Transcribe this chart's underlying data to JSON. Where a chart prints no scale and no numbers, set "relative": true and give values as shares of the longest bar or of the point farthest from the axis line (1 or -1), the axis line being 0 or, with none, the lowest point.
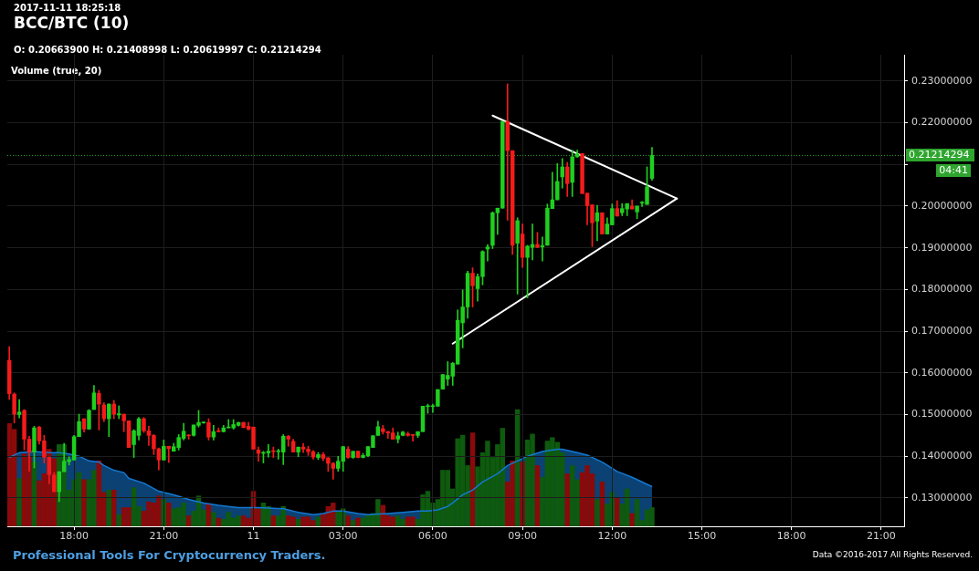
{
  "chart_data": [
    {
      "type": "candlestick",
      "title": "BCC/BTC (10)",
      "subtitle": "O: 0.20663900 H: 0.21408998 L: 0.20619997 C: 0.21214294",
      "annotations": [
        "2017-11-11 18:25:18",
        "Professional Tools For Cryptocurrency Traders.",
        "Data ©2016-2017 All Rights Reserved.",
        "04:41"
      ],
      "x": [
        "2017-11-10T15:50",
        "2017-11-10T16:00",
        "2017-11-10T16:10",
        "2017-11-10T16:20",
        "2017-11-10T16:30",
        "2017-11-10T16:40",
        "2017-11-10T16:50",
        "2017-11-10T17:00",
        "2017-11-10T17:10",
        "2017-11-10T17:20",
        "2017-11-10T17:30",
        "2017-11-10T17:40",
        "2017-11-10T17:50",
        "2017-11-10T18:00",
        "2017-11-10T18:10",
        "2017-11-10T18:20",
        "2017-11-10T18:30",
        "2017-11-10T18:40",
        "2017-11-10T18:50",
        "2017-11-10T19:00",
        "2017-11-10T19:10",
        "2017-11-10T19:20",
        "2017-11-10T19:30",
        "2017-11-10T19:40",
        "2017-11-10T19:50",
        "2017-11-10T20:00",
        "2017-11-10T20:10",
        "2017-11-10T20:20",
        "2017-11-10T20:30",
        "2017-11-10T20:40",
        "2017-11-10T20:50",
        "2017-11-10T21:00",
        "2017-11-10T21:10",
        "2017-11-10T21:20",
        "2017-11-10T21:30",
        "2017-11-10T21:40",
        "2017-11-10T21:50",
        "2017-11-10T22:00",
        "2017-11-10T22:10",
        "2017-11-10T22:20",
        "2017-11-10T22:30",
        "2017-11-10T22:40",
        "2017-11-10T22:50",
        "2017-11-10T23:00",
        "2017-11-10T23:10",
        "2017-11-10T23:20",
        "2017-11-10T23:30",
        "2017-11-10T23:40",
        "2017-11-10T23:50",
        "2017-11-11T00:00",
        "2017-11-11T00:10",
        "2017-11-11T00:20",
        "2017-11-11T00:30",
        "2017-11-11T00:40",
        "2017-11-11T00:50",
        "2017-11-11T01:00",
        "2017-11-11T01:10",
        "2017-11-11T01:20",
        "2017-11-11T01:30",
        "2017-11-11T01:40",
        "2017-11-11T01:50",
        "2017-11-11T02:00",
        "2017-11-11T02:10",
        "2017-11-11T02:20",
        "2017-11-11T02:30",
        "2017-11-11T02:40",
        "2017-11-11T02:50",
        "2017-11-11T03:00",
        "2017-11-11T03:10",
        "2017-11-11T03:20",
        "2017-11-11T03:30",
        "2017-11-11T03:40",
        "2017-11-11T03:50",
        "2017-11-11T04:00",
        "2017-11-11T04:10",
        "2017-11-11T04:20",
        "2017-11-11T04:30",
        "2017-11-11T04:40",
        "2017-11-11T04:50",
        "2017-11-11T05:00",
        "2017-11-11T05:10",
        "2017-11-11T05:20",
        "2017-11-11T05:30",
        "2017-11-11T05:40",
        "2017-11-11T05:50",
        "2017-11-11T06:00",
        "2017-11-11T06:10",
        "2017-11-11T06:20",
        "2017-11-11T06:30",
        "2017-11-11T06:40",
        "2017-11-11T06:50",
        "2017-11-11T07:00",
        "2017-11-11T07:10",
        "2017-11-11T07:20",
        "2017-11-11T07:30",
        "2017-11-11T07:40",
        "2017-11-11T07:50",
        "2017-11-11T08:00",
        "2017-11-11T08:10",
        "2017-11-11T08:20",
        "2017-11-11T08:30",
        "2017-11-11T08:40",
        "2017-11-11T08:50",
        "2017-11-11T09:00",
        "2017-11-11T09:10",
        "2017-11-11T09:20",
        "2017-11-11T09:30",
        "2017-11-11T09:40",
        "2017-11-11T09:50",
        "2017-11-11T10:00",
        "2017-11-11T10:10",
        "2017-11-11T10:20",
        "2017-11-11T10:30",
        "2017-11-11T10:40",
        "2017-11-11T10:50",
        "2017-11-11T11:00",
        "2017-11-11T11:10",
        "2017-11-11T11:20",
        "2017-11-11T11:30",
        "2017-11-11T11:40",
        "2017-11-11T11:50",
        "2017-11-11T12:00",
        "2017-11-11T12:10",
        "2017-11-11T12:20",
        "2017-11-11T12:30",
        "2017-11-11T12:40",
        "2017-11-11T12:50",
        "2017-11-11T13:00",
        "2017-11-11T13:10",
        "2017-11-11T13:20"
      ],
      "ohlc": [
        [
          0.163,
          0.1663,
          0.1536,
          0.155
        ],
        [
          0.1549,
          0.1552,
          0.148,
          0.1501
        ],
        [
          0.15,
          0.1536,
          0.1492,
          0.1506
        ],
        [
          0.151,
          0.1512,
          0.1415,
          0.1441
        ],
        [
          0.1441,
          0.1448,
          0.1364,
          0.141
        ],
        [
          0.141,
          0.1472,
          0.1372,
          0.1468
        ],
        [
          0.147,
          0.1472,
          0.1429,
          0.1437
        ],
        [
          0.1437,
          0.145,
          0.1384,
          0.1398
        ],
        [
          0.1398,
          0.1398,
          0.1334,
          0.1356
        ],
        [
          0.1355,
          0.1361,
          0.1315,
          0.1315
        ],
        [
          0.1315,
          0.1363,
          0.1291,
          0.1363
        ],
        [
          0.1363,
          0.1431,
          0.1363,
          0.1388
        ],
        [
          0.1387,
          0.1399,
          0.1379,
          0.1392
        ],
        [
          0.1391,
          0.145,
          0.1391,
          0.1447
        ],
        [
          0.1447,
          0.1501,
          0.1447,
          0.1483
        ],
        [
          0.149,
          0.149,
          0.1458,
          0.1465
        ],
        [
          0.1465,
          0.1512,
          0.1465,
          0.151
        ],
        [
          0.1512,
          0.157,
          0.1512,
          0.1552
        ],
        [
          0.1551,
          0.1558,
          0.1463,
          0.1525
        ],
        [
          0.1523,
          0.1528,
          0.1483,
          0.149
        ],
        [
          0.149,
          0.1526,
          0.1447,
          0.1525
        ],
        [
          0.1525,
          0.1534,
          0.149,
          0.1501
        ],
        [
          0.1499,
          0.1521,
          0.149,
          0.1502
        ],
        [
          0.1501,
          0.1501,
          0.1459,
          0.1485
        ],
        [
          0.1485,
          0.1485,
          0.1421,
          0.1421
        ],
        [
          0.1428,
          0.1464,
          0.1397,
          0.1461
        ],
        [
          0.145,
          0.1493,
          0.1439,
          0.149
        ],
        [
          0.149,
          0.1493,
          0.1457,
          0.1461
        ],
        [
          0.1461,
          0.1472,
          0.1426,
          0.145
        ],
        [
          0.145,
          0.1452,
          0.1404,
          0.1418
        ],
        [
          0.1418,
          0.142,
          0.1367,
          0.1391
        ],
        [
          0.1391,
          0.1439,
          0.1391,
          0.1424
        ],
        [
          0.1424,
          0.1424,
          0.1385,
          0.1418
        ],
        [
          0.1412,
          0.1431,
          0.1412,
          0.1423
        ],
        [
          0.1421,
          0.1452,
          0.1415,
          0.1445
        ],
        [
          0.1443,
          0.1479,
          0.1439,
          0.146
        ],
        [
          0.1451,
          0.1452,
          0.1441,
          0.1449
        ],
        [
          0.145,
          0.1475,
          0.1448,
          0.1475
        ],
        [
          0.1474,
          0.151,
          0.147,
          0.1481
        ],
        [
          0.148,
          0.1482,
          0.1479,
          0.1481
        ],
        [
          0.1481,
          0.149,
          0.1439,
          0.1446
        ],
        [
          0.1446,
          0.1474,
          0.1439,
          0.1459
        ],
        [
          0.146,
          0.1468,
          0.1458,
          0.1459
        ],
        [
          0.1459,
          0.1474,
          0.1458,
          0.1468
        ],
        [
          0.1468,
          0.1488,
          0.1468,
          0.147
        ],
        [
          0.1468,
          0.1488,
          0.1465,
          0.1476
        ],
        [
          0.1474,
          0.1482,
          0.1472,
          0.1481
        ],
        [
          0.1481,
          0.1482,
          0.1468,
          0.1469
        ],
        [
          0.1472,
          0.1481,
          0.1463,
          0.1465
        ],
        [
          0.147,
          0.147,
          0.1417,
          0.1417
        ],
        [
          0.1415,
          0.1422,
          0.1388,
          0.1407
        ],
        [
          0.1407,
          0.1412,
          0.1384,
          0.1409
        ],
        [
          0.1408,
          0.1428,
          0.1398,
          0.1412
        ],
        [
          0.1412,
          0.1422,
          0.1397,
          0.1411
        ],
        [
          0.1411,
          0.1417,
          0.1393,
          0.1412
        ],
        [
          0.141,
          0.1452,
          0.138,
          0.1448
        ],
        [
          0.1448,
          0.145,
          0.1424,
          0.1441
        ],
        [
          0.1436,
          0.1441,
          0.141,
          0.141
        ],
        [
          0.141,
          0.1422,
          0.1399,
          0.1422
        ],
        [
          0.1422,
          0.1431,
          0.1409,
          0.1417
        ],
        [
          0.1417,
          0.1424,
          0.1402,
          0.1411
        ],
        [
          0.1411,
          0.1414,
          0.1393,
          0.1398
        ],
        [
          0.1397,
          0.1409,
          0.1392,
          0.1404
        ],
        [
          0.1404,
          0.1409,
          0.1389,
          0.1395
        ],
        [
          0.1396,
          0.1397,
          0.1364,
          0.1383
        ],
        [
          0.1383,
          0.1385,
          0.1345,
          0.1371
        ],
        [
          0.1371,
          0.14,
          0.1364,
          0.1388
        ],
        [
          0.1388,
          0.1424,
          0.1364,
          0.1423
        ],
        [
          0.1417,
          0.1423,
          0.1395,
          0.1397
        ],
        [
          0.1397,
          0.1412,
          0.1395,
          0.1412
        ],
        [
          0.1412,
          0.1413,
          0.1396,
          0.1397
        ],
        [
          0.1397,
          0.1407,
          0.1396,
          0.1402
        ],
        [
          0.1401,
          0.1424,
          0.1399,
          0.1423
        ],
        [
          0.1421,
          0.145,
          0.1421,
          0.1449
        ],
        [
          0.145,
          0.1484,
          0.145,
          0.1471
        ],
        [
          0.1466,
          0.1474,
          0.1453,
          0.1459
        ],
        [
          0.1459,
          0.146,
          0.1443,
          0.1456
        ],
        [
          0.1456,
          0.1468,
          0.1441,
          0.1441
        ],
        [
          0.1441,
          0.1458,
          0.1432,
          0.1449
        ],
        [
          0.145,
          0.146,
          0.1449,
          0.1458
        ],
        [
          0.1454,
          0.1458,
          0.1448,
          0.145
        ],
        [
          0.1452,
          0.1452,
          0.1436,
          0.145
        ],
        [
          0.145,
          0.1459,
          0.1445,
          0.1459
        ],
        [
          0.1459,
          0.152,
          0.1459,
          0.152
        ],
        [
          0.1519,
          0.1525,
          0.1503,
          0.152
        ],
        [
          0.1519,
          0.1525,
          0.1505,
          0.1521
        ],
        [
          0.152,
          0.156,
          0.152,
          0.156
        ],
        [
          0.1561,
          0.1596,
          0.1561,
          0.1596
        ],
        [
          0.1585,
          0.1627,
          0.157,
          0.1594
        ],
        [
          0.1592,
          0.1625,
          0.157,
          0.1623
        ],
        [
          0.1621,
          0.1751,
          0.1621,
          0.1726
        ],
        [
          0.172,
          0.1799,
          0.166,
          0.1758
        ],
        [
          0.1758,
          0.1844,
          0.1731,
          0.1839
        ],
        [
          0.1839,
          0.1852,
          0.1758,
          0.1809
        ],
        [
          0.1802,
          0.1837,
          0.1772,
          0.1831
        ],
        [
          0.1831,
          0.1893,
          0.1811,
          0.1891
        ],
        [
          0.1897,
          0.1908,
          0.1868,
          0.1902
        ],
        [
          0.1906,
          0.1986,
          0.1898,
          0.1984
        ],
        [
          0.1984,
          0.1995,
          0.1932,
          0.1995
        ],
        [
          0.1995,
          0.2203,
          0.1995,
          0.2203
        ],
        [
          0.2203,
          0.2293,
          0.1966,
          0.2133
        ],
        [
          0.2133,
          0.2133,
          0.1884,
          0.1906
        ],
        [
          0.1911,
          0.1972,
          0.1789,
          0.1965
        ],
        [
          0.1933,
          0.1957,
          0.1853,
          0.1877
        ],
        [
          0.1877,
          0.1906,
          0.178,
          0.1904
        ],
        [
          0.1901,
          0.1957,
          0.1871,
          0.1908
        ],
        [
          0.1908,
          0.1937,
          0.19,
          0.1901
        ],
        [
          0.1902,
          0.1926,
          0.1868,
          0.1905
        ],
        [
          0.1906,
          0.2005,
          0.1906,
          0.1995
        ],
        [
          0.1994,
          0.2081,
          0.1994,
          0.2015
        ],
        [
          0.2015,
          0.2102,
          0.2015,
          0.2059
        ],
        [
          0.207,
          0.2114,
          0.2043,
          0.2094
        ],
        [
          0.2094,
          0.2105,
          0.2023,
          0.2054
        ],
        [
          0.2057,
          0.2134,
          0.2023,
          0.2118
        ],
        [
          0.2118,
          0.2134,
          0.2117,
          0.2125
        ],
        [
          0.2126,
          0.2126,
          0.203,
          0.203
        ],
        [
          0.2031,
          0.2031,
          0.1955,
          0.2001
        ],
        [
          0.2003,
          0.2003,
          0.1903,
          0.196
        ],
        [
          0.1964,
          0.2002,
          0.1917,
          0.1984
        ],
        [
          0.1984,
          0.1984,
          0.1933,
          0.1933
        ],
        [
          0.1933,
          0.1972,
          0.1933,
          0.1957
        ],
        [
          0.1955,
          0.2005,
          0.1955,
          0.1994
        ],
        [
          0.1994,
          0.2013,
          0.1976,
          0.1976
        ],
        [
          0.1984,
          0.2006,
          0.1977,
          0.1994
        ],
        [
          0.1993,
          0.2006,
          0.1977,
          0.2006
        ],
        [
          0.2,
          0.2015,
          0.1993,
          0.1993
        ],
        [
          0.1986,
          0.2,
          0.197,
          0.2
        ],
        [
          0.2007,
          0.2011,
          0.1999,
          0.2008
        ],
        [
          0.2004,
          0.2094,
          0.2004,
          0.2046
        ],
        [
          0.206639,
          0.21408998,
          0.20619997,
          0.21214294
        ]
      ],
      "colors": [
        "#f51b1b",
        "#f51b1b",
        "#1fcf1f",
        "#f51b1b",
        "#f51b1b",
        "#1fcf1f",
        "#f51b1b",
        "#f51b1b",
        "#f51b1b",
        "#f51b1b",
        "#1fcf1f",
        "#1fcf1f",
        "#1fcf1f",
        "#1fcf1f",
        "#1fcf1f",
        "#f51b1b",
        "#1fcf1f",
        "#1fcf1f",
        "#f51b1b",
        "#f51b1b",
        "#1fcf1f",
        "#f51b1b",
        "#1fcf1f",
        "#f51b1b",
        "#f51b1b",
        "#1fcf1f",
        "#1fcf1f",
        "#f51b1b",
        "#f51b1b",
        "#f51b1b",
        "#f51b1b",
        "#1fcf1f",
        "#f51b1b",
        "#1fcf1f",
        "#1fcf1f",
        "#1fcf1f",
        "#f51b1b",
        "#1fcf1f",
        "#1fcf1f",
        "#1fcf1f",
        "#f51b1b",
        "#1fcf1f",
        "#f51b1b",
        "#1fcf1f",
        "#1fcf1f",
        "#1fcf1f",
        "#1fcf1f",
        "#f51b1b",
        "#f51b1b",
        "#f51b1b",
        "#f51b1b",
        "#1fcf1f",
        "#1fcf1f",
        "#f51b1b",
        "#1fcf1f",
        "#1fcf1f",
        "#f51b1b",
        "#f51b1b",
        "#1fcf1f",
        "#f51b1b",
        "#f51b1b",
        "#f51b1b",
        "#1fcf1f",
        "#f51b1b",
        "#f51b1b",
        "#f51b1b",
        "#1fcf1f",
        "#1fcf1f",
        "#f51b1b",
        "#1fcf1f",
        "#f51b1b",
        "#1fcf1f",
        "#1fcf1f",
        "#1fcf1f",
        "#1fcf1f",
        "#f51b1b",
        "#f51b1b",
        "#f51b1b",
        "#1fcf1f",
        "#1fcf1f",
        "#f51b1b",
        "#f51b1b",
        "#1fcf1f",
        "#1fcf1f",
        "#1fcf1f",
        "#1fcf1f",
        "#1fcf1f",
        "#1fcf1f",
        "#1fcf1f",
        "#1fcf1f",
        "#1fcf1f",
        "#1fcf1f",
        "#1fcf1f",
        "#f51b1b",
        "#1fcf1f",
        "#1fcf1f",
        "#1fcf1f",
        "#1fcf1f",
        "#1fcf1f",
        "#1fcf1f",
        "#f51b1b",
        "#f51b1b",
        "#1fcf1f",
        "#f51b1b",
        "#1fcf1f",
        "#1fcf1f",
        "#f51b1b",
        "#1fcf1f",
        "#1fcf1f",
        "#1fcf1f",
        "#1fcf1f",
        "#1fcf1f",
        "#f51b1b",
        "#1fcf1f",
        "#1fcf1f",
        "#f51b1b",
        "#f51b1b",
        "#f51b1b",
        "#1fcf1f",
        "#f51b1b",
        "#1fcf1f",
        "#1fcf1f",
        "#f51b1b",
        "#1fcf1f",
        "#1fcf1f",
        "#f51b1b",
        "#1fcf1f",
        "#1fcf1f",
        "#1fcf1f",
        "#1fcf1f"
      ],
      "series": [
        {
          "type": "line",
          "x": [
            "2017-11-11T08:00",
            "2017-11-11T14:10"
          ],
          "values": [
            0.2217,
            0.2018
          ],
          "color": "#ffffff"
        },
        {
          "type": "line",
          "x": [
            "2017-11-11T06:40",
            "2017-11-11T14:10"
          ],
          "values": [
            0.167,
            0.2018
          ],
          "color": "#ffffff"
        }
      ],
      "xlim": [
        "2017-11-10T15:46",
        "2017-11-11T21:46"
      ],
      "xticks": [
        {
          "value": "2017-11-10T18:00",
          "label": "18:00"
        },
        {
          "value": "2017-11-10T21:00",
          "label": "21:00"
        },
        {
          "value": "2017-11-11T00:00",
          "label": "11"
        },
        {
          "value": "2017-11-11T03:00",
          "label": "03:00"
        },
        {
          "value": "2017-11-11T06:00",
          "label": "06:00"
        },
        {
          "value": "2017-11-11T09:00",
          "label": "09:00"
        },
        {
          "value": "2017-11-11T12:00",
          "label": "12:00"
        },
        {
          "value": "2017-11-11T15:00",
          "label": "15:00"
        },
        {
          "value": "2017-11-11T18:00",
          "label": "18:00"
        },
        {
          "value": "2017-11-11T21:00",
          "label": "21:00"
        }
      ],
      "ylim": [
        0.1232,
        0.2363
      ],
      "yticks": [
        {
          "value": 0.13,
          "label": "0.13000000"
        },
        {
          "value": 0.14,
          "label": "0.14000000"
        },
        {
          "value": 0.15,
          "label": "0.15000000"
        },
        {
          "value": 0.16,
          "label": "0.16000000"
        },
        {
          "value": 0.17,
          "label": "0.17000000"
        },
        {
          "value": 0.18,
          "label": "0.18000000"
        },
        {
          "value": 0.19,
          "label": "0.19000000"
        },
        {
          "value": 0.2,
          "label": "0.20000000"
        },
        {
          "value": 0.21,
          "label": null
        },
        {
          "value": 0.22,
          "label": "0.22000000"
        },
        {
          "value": 0.23,
          "label": "0.23000000"
        }
      ],
      "grid": true,
      "ref_lines": [
        {
          "axis": "y",
          "value": 0.21214294,
          "label": "0.21214294",
          "color": "#2fa52f",
          "line_style": "dotted"
        }
      ]
    },
    {
      "type": "bar",
      "title": "Volume (true, 20)",
      "relative": true,
      "x": [
        "2017-11-10T15:50",
        "2017-11-10T16:00",
        "2017-11-10T16:10",
        "2017-11-10T16:20",
        "2017-11-10T16:30",
        "2017-11-10T16:40",
        "2017-11-10T16:50",
        "2017-11-10T17:00",
        "2017-11-10T17:10",
        "2017-11-10T17:20",
        "2017-11-10T17:30",
        "2017-11-10T17:40",
        "2017-11-10T17:50",
        "2017-11-10T18:00",
        "2017-11-10T18:10",
        "2017-11-10T18:20",
        "2017-11-10T18:30",
        "2017-11-10T18:40",
        "2017-11-10T18:50",
        "2017-11-10T19:00",
        "2017-11-10T19:10",
        "2017-11-10T19:20",
        "2017-11-10T19:30",
        "2017-11-10T19:40",
        "2017-11-10T19:50",
        "2017-11-10T20:00",
        "2017-11-10T20:10",
        "2017-11-10T20:20",
        "2017-11-10T20:30",
        "2017-11-10T20:40",
        "2017-11-10T20:50",
        "2017-11-10T21:00",
        "2017-11-10T21:10",
        "2017-11-10T21:20",
        "2017-11-10T21:30",
        "2017-11-10T21:40",
        "2017-11-10T21:50",
        "2017-11-10T22:00",
        "2017-11-10T22:10",
        "2017-11-10T22:20",
        "2017-11-10T22:30",
        "2017-11-10T22:40",
        "2017-11-10T22:50",
        "2017-11-10T23:00",
        "2017-11-10T23:10",
        "2017-11-10T23:20",
        "2017-11-10T23:30",
        "2017-11-10T23:40",
        "2017-11-10T23:50",
        "2017-11-11T00:00",
        "2017-11-11T00:10",
        "2017-11-11T00:20",
        "2017-11-11T00:30",
        "2017-11-11T00:40",
        "2017-11-11T00:50",
        "2017-11-11T01:00",
        "2017-11-11T01:10",
        "2017-11-11T01:20",
        "2017-11-11T01:30",
        "2017-11-11T01:40",
        "2017-11-11T01:50",
        "2017-11-11T02:00",
        "2017-11-11T02:10",
        "2017-11-11T02:20",
        "2017-11-11T02:30",
        "2017-11-11T02:40",
        "2017-11-11T02:50",
        "2017-11-11T03:00",
        "2017-11-11T03:10",
        "2017-11-11T03:20",
        "2017-11-11T03:30",
        "2017-11-11T03:40",
        "2017-11-11T03:50",
        "2017-11-11T04:00",
        "2017-11-11T04:10",
        "2017-11-11T04:20",
        "2017-11-11T04:30",
        "2017-11-11T04:40",
        "2017-11-11T04:50",
        "2017-11-11T05:00",
        "2017-11-11T05:10",
        "2017-11-11T05:20",
        "2017-11-11T05:30",
        "2017-11-11T05:40",
        "2017-11-11T05:50",
        "2017-11-11T06:00",
        "2017-11-11T06:10",
        "2017-11-11T06:20",
        "2017-11-11T06:30",
        "2017-11-11T06:40",
        "2017-11-11T06:50",
        "2017-11-11T07:00",
        "2017-11-11T07:10",
        "2017-11-11T07:20",
        "2017-11-11T07:30",
        "2017-11-11T07:40",
        "2017-11-11T07:50",
        "2017-11-11T08:00",
        "2017-11-11T08:10",
        "2017-11-11T08:20",
        "2017-11-11T08:30",
        "2017-11-11T08:40",
        "2017-11-11T08:50",
        "2017-11-11T09:00",
        "2017-11-11T09:10",
        "2017-11-11T09:20",
        "2017-11-11T09:30",
        "2017-11-11T09:40",
        "2017-11-11T09:50",
        "2017-11-11T10:00",
        "2017-11-11T10:10",
        "2017-11-11T10:20",
        "2017-11-11T10:30",
        "2017-11-11T10:40",
        "2017-11-11T10:50",
        "2017-11-11T11:00",
        "2017-11-11T11:10",
        "2017-11-11T11:20",
        "2017-11-11T11:30",
        "2017-11-11T11:40",
        "2017-11-11T11:50",
        "2017-11-11T12:00",
        "2017-11-11T12:10",
        "2017-11-11T12:20",
        "2017-11-11T12:30",
        "2017-11-11T12:40",
        "2017-11-11T12:50",
        "2017-11-11T13:00",
        "2017-11-11T13:10",
        "2017-11-11T13:20"
      ],
      "xlim": [
        "2017-11-10T15:46",
        "2017-11-11T21:46"
      ],
      "series": [
        {
          "values": [
            0.88,
            0.83,
            0.41,
            0.62,
            0.59,
            0.55,
            0.39,
            0.45,
            0.66,
            0.58,
            0.7,
            0.7,
            0.31,
            0.4,
            0.46,
            0.4,
            0.4,
            0.48,
            0.56,
            0.29,
            0.31,
            0.31,
            0.1,
            0.16,
            0.16,
            0.33,
            0.17,
            0.13,
            0.21,
            0.2,
            0.26,
            0.23,
            0.2,
            0.15,
            0.16,
            0.2,
            0.09,
            0.13,
            0.26,
            0.14,
            0.19,
            0.12,
            0.07,
            0.06,
            0.12,
            0.07,
            0.09,
            0.09,
            0.07,
            0.3,
            0.15,
            0.2,
            0.17,
            0.09,
            0.09,
            0.17,
            0.09,
            0.08,
            0.06,
            0.08,
            0.08,
            0.05,
            0.08,
            0.1,
            0.17,
            0.2,
            0.13,
            0.15,
            0.09,
            0.05,
            0.07,
            0.07,
            0.1,
            0.11,
            0.23,
            0.18,
            0.09,
            0.08,
            0.09,
            0.06,
            0.08,
            0.08,
            0.06,
            0.27,
            0.3,
            0.2,
            0.23,
            0.48,
            0.48,
            0.32,
            0.75,
            0.78,
            0.52,
            0.8,
            0.51,
            0.63,
            0.73,
            0.59,
            0.7,
            0.84,
            0.38,
            0.56,
            1,
            0.55,
            0.74,
            0.79,
            0.52,
            0.42,
            0.73,
            0.76,
            0.72,
            0.63,
            0.45,
            0.52,
            0.4,
            0.46,
            0.52,
            0.45,
            0.23,
            0.38,
            0.19,
            0.29,
            0.24,
            0.19,
            0.32,
            0.11,
            0.23,
            0.05,
            0.14,
            0.16
          ],
          "colors": [
            "#8a0a0a",
            "#8a0a0a",
            "#0e5a0e",
            "#8a0a0a",
            "#8a0a0a",
            "#0e5a0e",
            "#8a0a0a",
            "#8a0a0a",
            "#8a0a0a",
            "#8a0a0a",
            "#0e5a0e",
            "#0e5a0e",
            "#0e5a0e",
            "#0e5a0e",
            "#0e5a0e",
            "#8a0a0a",
            "#0e5a0e",
            "#0e5a0e",
            "#8a0a0a",
            "#8a0a0a",
            "#0e5a0e",
            "#8a0a0a",
            "#0e5a0e",
            "#8a0a0a",
            "#8a0a0a",
            "#0e5a0e",
            "#0e5a0e",
            "#8a0a0a",
            "#8a0a0a",
            "#8a0a0a",
            "#8a0a0a",
            "#0e5a0e",
            "#8a0a0a",
            "#0e5a0e",
            "#0e5a0e",
            "#0e5a0e",
            "#8a0a0a",
            "#0e5a0e",
            "#0e5a0e",
            "#0e5a0e",
            "#8a0a0a",
            "#0e5a0e",
            "#8a0a0a",
            "#0e5a0e",
            "#0e5a0e",
            "#0e5a0e",
            "#0e5a0e",
            "#8a0a0a",
            "#8a0a0a",
            "#8a0a0a",
            "#8a0a0a",
            "#0e5a0e",
            "#0e5a0e",
            "#8a0a0a",
            "#0e5a0e",
            "#0e5a0e",
            "#8a0a0a",
            "#8a0a0a",
            "#0e5a0e",
            "#8a0a0a",
            "#8a0a0a",
            "#8a0a0a",
            "#0e5a0e",
            "#8a0a0a",
            "#8a0a0a",
            "#8a0a0a",
            "#0e5a0e",
            "#0e5a0e",
            "#8a0a0a",
            "#0e5a0e",
            "#8a0a0a",
            "#0e5a0e",
            "#0e5a0e",
            "#0e5a0e",
            "#0e5a0e",
            "#8a0a0a",
            "#8a0a0a",
            "#8a0a0a",
            "#0e5a0e",
            "#0e5a0e",
            "#8a0a0a",
            "#8a0a0a",
            "#0e5a0e",
            "#0e5a0e",
            "#0e5a0e",
            "#0e5a0e",
            "#0e5a0e",
            "#0e5a0e",
            "#0e5a0e",
            "#0e5a0e",
            "#0e5a0e",
            "#0e5a0e",
            "#0e5a0e",
            "#8a0a0a",
            "#0e5a0e",
            "#0e5a0e",
            "#0e5a0e",
            "#0e5a0e",
            "#0e5a0e",
            "#0e5a0e",
            "#8a0a0a",
            "#8a0a0a",
            "#0e5a0e",
            "#8a0a0a",
            "#0e5a0e",
            "#0e5a0e",
            "#8a0a0a",
            "#0e5a0e",
            "#0e5a0e",
            "#0e5a0e",
            "#0e5a0e",
            "#0e5a0e",
            "#8a0a0a",
            "#0e5a0e",
            "#0e5a0e",
            "#8a0a0a",
            "#8a0a0a",
            "#8a0a0a",
            "#0e5a0e",
            "#8a0a0a",
            "#0e5a0e",
            "#0e5a0e",
            "#8a0a0a",
            "#0e5a0e",
            "#0e5a0e",
            "#8a0a0a",
            "#0e5a0e",
            "#0e5a0e",
            "#0e5a0e",
            "#0e5a0e"
          ]
        },
        {
          "type": "area",
          "x": [
            "2017-11-10T15:50",
            "2017-11-10T16:10",
            "2017-11-10T16:40",
            "2017-11-10T17:10",
            "2017-11-10T17:30",
            "2017-11-10T17:50",
            "2017-11-10T18:10",
            "2017-11-10T18:30",
            "2017-11-10T18:50",
            "2017-11-10T19:00",
            "2017-11-10T19:20",
            "2017-11-10T19:40",
            "2017-11-10T19:50",
            "2017-11-10T20:20",
            "2017-11-10T20:50",
            "2017-11-10T21:20",
            "2017-11-10T21:50",
            "2017-11-10T22:20",
            "2017-11-10T22:50",
            "2017-11-10T23:30",
            "2017-11-11T00:10",
            "2017-11-11T01:00",
            "2017-11-11T01:30",
            "2017-11-11T02:00",
            "2017-11-11T02:20",
            "2017-11-11T02:40",
            "2017-11-11T03:00",
            "2017-11-11T03:30",
            "2017-11-11T03:50",
            "2017-11-11T04:30",
            "2017-11-11T05:00",
            "2017-11-11T05:30",
            "2017-11-11T05:50",
            "2017-11-11T06:10",
            "2017-11-11T06:30",
            "2017-11-11T06:40",
            "2017-11-11T07:00",
            "2017-11-11T07:20",
            "2017-11-11T07:40",
            "2017-11-11T08:10",
            "2017-11-11T08:30",
            "2017-11-11T08:50",
            "2017-11-11T09:10",
            "2017-11-11T09:40",
            "2017-11-11T10:10",
            "2017-11-11T10:20",
            "2017-11-11T10:50",
            "2017-11-11T11:10",
            "2017-11-11T11:40",
            "2017-11-11T12:10",
            "2017-11-11T12:40",
            "2017-11-11T13:20"
          ],
          "values": [
            0.59,
            0.63,
            0.64,
            0.63,
            0.63,
            0.62,
            0.6,
            0.56,
            0.55,
            0.52,
            0.48,
            0.46,
            0.41,
            0.37,
            0.3,
            0.27,
            0.23,
            0.2,
            0.18,
            0.16,
            0.16,
            0.15,
            0.12,
            0.1,
            0.11,
            0.13,
            0.13,
            0.11,
            0.1,
            0.11,
            0.12,
            0.13,
            0.13,
            0.14,
            0.17,
            0.2,
            0.27,
            0.31,
            0.38,
            0.45,
            0.52,
            0.56,
            0.6,
            0.64,
            0.66,
            0.66,
            0.63,
            0.61,
            0.55,
            0.47,
            0.42,
            0.34
          ],
          "color": "#1478d2"
        }
      ]
    }
  ]
}
